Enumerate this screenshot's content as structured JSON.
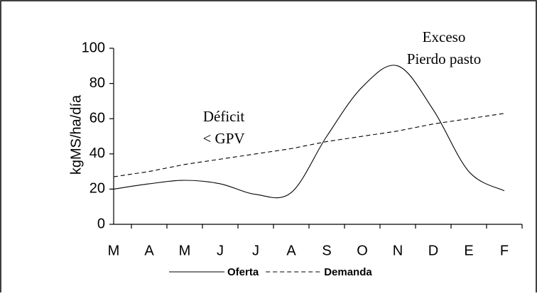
{
  "chart_data": {
    "type": "line",
    "y_label": "kgMS/ha/día",
    "categories": [
      "M",
      "A",
      "M",
      "J",
      "J",
      "A",
      "S",
      "O",
      "N",
      "D",
      "E",
      "F"
    ],
    "series": [
      {
        "name": "Oferta",
        "color": "#000000",
        "dash": false,
        "smooth": true,
        "values": [
          20,
          23,
          25,
          23,
          17,
          18,
          50,
          78,
          90,
          65,
          30,
          19
        ]
      },
      {
        "name": "Demanda",
        "color": "#000000",
        "dash": true,
        "smooth": false,
        "values": [
          27,
          30,
          34,
          37,
          40,
          43,
          47,
          50,
          53,
          57,
          60,
          63
        ]
      }
    ],
    "annotations": [
      [
        "Déficit",
        "< GPV"
      ],
      [
        "Exceso",
        "Pierdo pasto"
      ]
    ],
    "ylim": [
      0,
      100
    ],
    "yticks": [
      0,
      20,
      40,
      60,
      80,
      100
    ],
    "grid": false
  }
}
